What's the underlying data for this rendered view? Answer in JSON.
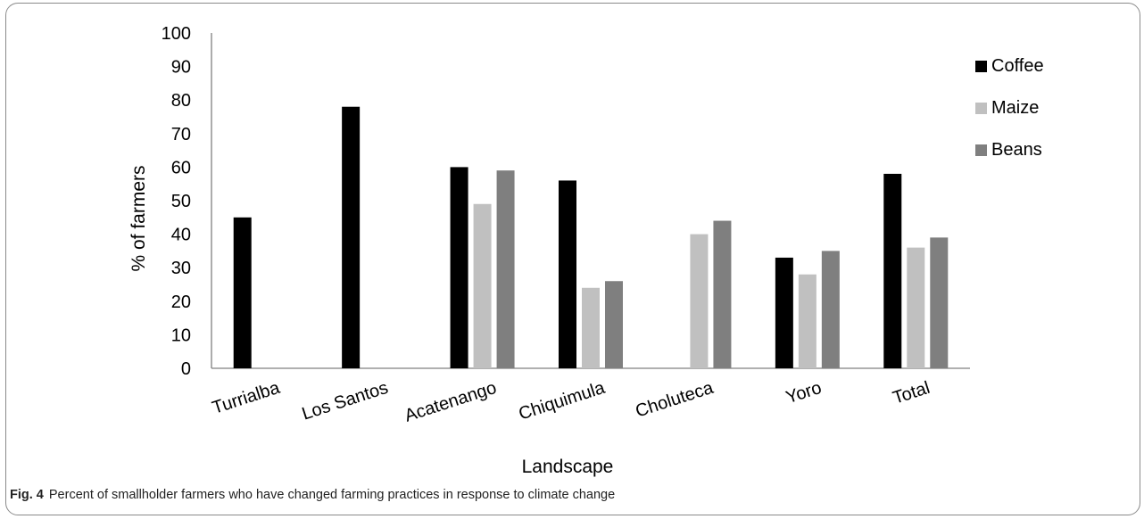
{
  "chart_data": {
    "type": "bar",
    "title": "",
    "xlabel": "Landscape",
    "ylabel": "% of farmers",
    "ylim": [
      0,
      100
    ],
    "yticks": [
      "0",
      "10",
      "20",
      "30",
      "40",
      "50",
      "60",
      "70",
      "80",
      "90",
      "100"
    ],
    "grid": false,
    "legend_position": "right",
    "categories": [
      "Turrialba",
      "Los Santos",
      "Acatenango",
      "Chiquimula",
      "Choluteca",
      "Yoro",
      "Total"
    ],
    "series": [
      {
        "name": "Coffee",
        "color": "#000000",
        "values": [
          45,
          78,
          60,
          56,
          null,
          33,
          58
        ]
      },
      {
        "name": "Maize",
        "color": "#c0c0c0",
        "values": [
          null,
          null,
          49,
          24,
          40,
          28,
          36
        ]
      },
      {
        "name": "Beans",
        "color": "#7f7f7f",
        "values": [
          null,
          null,
          59,
          26,
          44,
          35,
          39
        ]
      }
    ]
  },
  "caption": {
    "label": "Fig. 4",
    "text": "Percent of smallholder farmers who have changed farming practices in response to climate change"
  }
}
